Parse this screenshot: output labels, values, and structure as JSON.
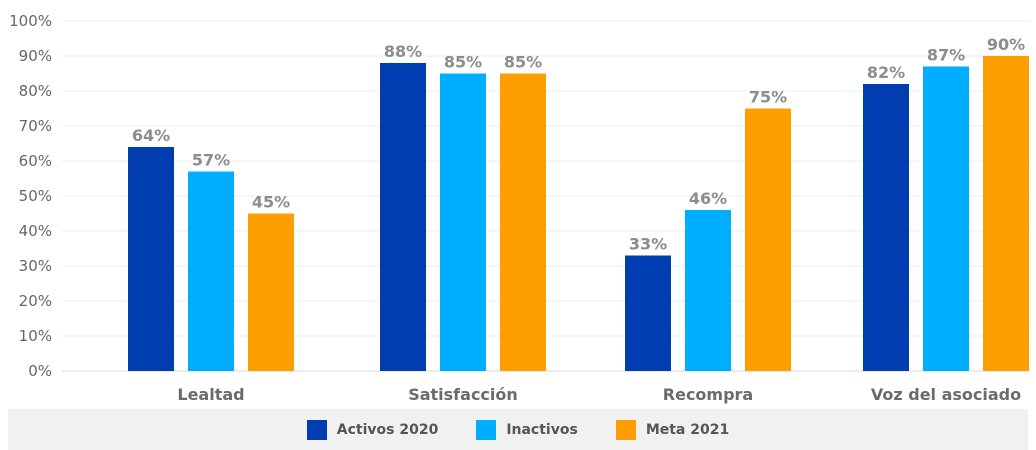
{
  "chart_data": {
    "type": "bar",
    "categories": [
      "Lealtad",
      "Satisfacción",
      "Recompra",
      "Voz del asociado"
    ],
    "series": [
      {
        "name": "Activos 2020",
        "color": "#003DB0",
        "values": [
          64,
          88,
          33,
          82
        ],
        "labels": [
          "64%",
          "88%",
          "33%",
          "82%"
        ]
      },
      {
        "name": "Inactivos",
        "color": "#00AEFF",
        "values": [
          57,
          85,
          46,
          87
        ],
        "labels": [
          "57%",
          "85%",
          "46%",
          "87%"
        ]
      },
      {
        "name": "Meta 2021",
        "color": "#FF9E00",
        "values": [
          45,
          85,
          75,
          90
        ],
        "labels": [
          "45%",
          "85%",
          "75%",
          "90%"
        ]
      }
    ],
    "ylim": [
      0,
      100
    ],
    "yticks": [
      "0%",
      "10%",
      "20%",
      "30%",
      "40%",
      "50%",
      "60%",
      "70%",
      "80%",
      "90%",
      "100%"
    ],
    "grid": true,
    "legend_position": "bottom"
  }
}
